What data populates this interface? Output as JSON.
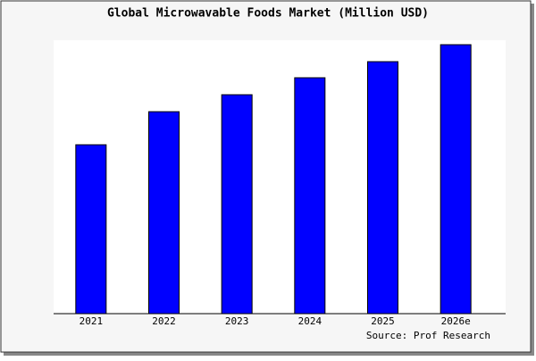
{
  "chart_data": {
    "type": "bar",
    "title": "Global Microwavable Foods Market (Million USD)",
    "categories": [
      "2021",
      "2022",
      "2023",
      "2024",
      "2025",
      "2026e"
    ],
    "values": [
      189,
      226,
      245,
      264,
      282,
      301
    ],
    "color": "#0000ff",
    "ylim": [
      0,
      306
    ],
    "source": "Source: Prof Research"
  }
}
